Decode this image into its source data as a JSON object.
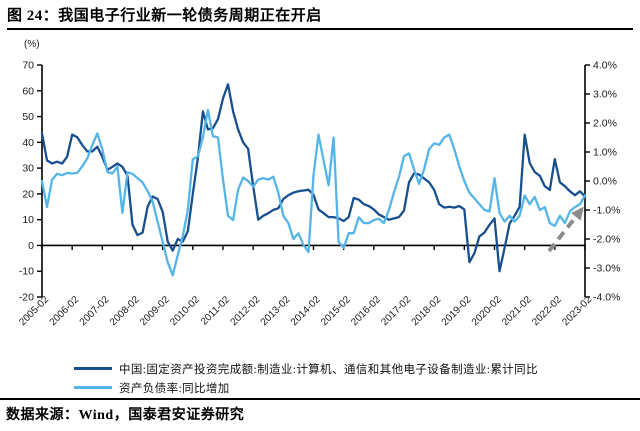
{
  "title": "图 24：我国电子行业新一轮债务周期正在开启",
  "source_note": "数据来源：Wind，国泰君安证券研究",
  "colors": {
    "dark_line": "#184F8F",
    "light_line": "#55B5E8",
    "arrow": "#8C8C8C",
    "axis": "#1a1a1a"
  },
  "chart_data": {
    "type": "line",
    "title": "图 24：我国电子行业新一轮债务周期正在开启",
    "left_axis": {
      "unit_label": "(%)",
      "min": -20,
      "max": 70,
      "ticks": [
        70,
        60,
        50,
        40,
        30,
        20,
        10,
        0,
        -10,
        -20
      ]
    },
    "right_axis": {
      "min": -4,
      "max": 4,
      "ticks": [
        4,
        3,
        2,
        1,
        0,
        -1,
        -2,
        -3,
        -4
      ],
      "tick_labels": [
        "4.0%",
        "3.0%",
        "2.0%",
        "1.0%",
        "0.0%",
        "-1.0%",
        "-2.0%",
        "-3.0%",
        "-4.0%"
      ]
    },
    "x_tick_labels": [
      "2005-02",
      "2006-02",
      "2007-02",
      "2008-02",
      "2009-02",
      "2010-02",
      "2011-02",
      "2012-02",
      "2013-02",
      "2014-02",
      "2015-02",
      "2016-02",
      "2017-02",
      "2018-02",
      "2019-02",
      "2020-02",
      "2021-02",
      "2022-02",
      "2023-02"
    ],
    "x_start": "2005-02",
    "x_end": "2023-02",
    "sample_step_months": 2,
    "grid": false,
    "legend_position": "bottom",
    "series": [
      {
        "name": "中国:固定资产投资完成额:制造业:计算机、通信和其他电子设备制造业:累计同比",
        "axis": "left",
        "color": "#184F8F",
        "values": [
          43.5,
          33,
          31.8,
          32.5,
          31.8,
          34.4,
          43,
          42,
          39,
          36.5,
          36.5,
          38.3,
          34.4,
          29.3,
          30.5,
          31.8,
          30.5,
          27,
          8,
          4,
          5,
          15,
          19,
          18,
          13,
          1.5,
          -2,
          2.5,
          1.5,
          5.5,
          20,
          34,
          52,
          45,
          45.5,
          49,
          57,
          62.5,
          52,
          45,
          40,
          37.5,
          23,
          10,
          11.5,
          12.5,
          13.8,
          14.4,
          18,
          19.5,
          20.5,
          21,
          21.3,
          21.6,
          19.7,
          14,
          12.5,
          11,
          11,
          10.5,
          9.5,
          11,
          18.4,
          17.8,
          16,
          15.3,
          14,
          12,
          11,
          10,
          10.5,
          11,
          13.5,
          24.5,
          28,
          27.5,
          26,
          24.5,
          21.5,
          16,
          14.7,
          15,
          14.7,
          15.3,
          14,
          -6.5,
          -3,
          3.5,
          5,
          8,
          10.5,
          -10,
          -1,
          8.5,
          11.5,
          15,
          43,
          32,
          28.5,
          27,
          23,
          21.5,
          33.5,
          24.5,
          23,
          21,
          19.5,
          21,
          19
        ]
      },
      {
        "name": "资产负债率:同比增加",
        "axis": "right",
        "color": "#55B5E8",
        "values": [
          0.0,
          -0.9,
          0.05,
          0.25,
          0.2,
          0.28,
          0.26,
          0.28,
          0.5,
          0.78,
          1.24,
          1.64,
          1.1,
          0.31,
          0.26,
          0.5,
          -1.1,
          0.3,
          0.25,
          0.1,
          -0.05,
          -0.35,
          -0.7,
          -1.4,
          -2.1,
          -2.8,
          -3.25,
          -2.55,
          -1.9,
          -1.0,
          0.75,
          0.85,
          1.5,
          2.45,
          1.55,
          1.5,
          0.05,
          -1.2,
          -1.35,
          -0.3,
          0.12,
          0.0,
          -0.2,
          0.05,
          0.1,
          0.05,
          0.15,
          -0.4,
          -1.2,
          -1.45,
          -2.0,
          -1.8,
          -2.2,
          -2.45,
          0.2,
          1.6,
          0.7,
          -0.15,
          1.5,
          -2.1,
          -2.3,
          -1.8,
          -1.8,
          -1.25,
          -1.45,
          -1.45,
          -1.35,
          -1.3,
          -1.45,
          -1.0,
          -0.4,
          0.15,
          0.85,
          0.95,
          0.4,
          -0.1,
          0.4,
          1.1,
          1.3,
          1.25,
          1.5,
          1.6,
          1.1,
          0.5,
          0.0,
          -0.4,
          -0.6,
          -0.8,
          -1.0,
          -1.05,
          0.1,
          -1.1,
          -1.4,
          -1.2,
          -1.4,
          -1.2,
          -0.5,
          -0.8,
          -0.55,
          -1.0,
          -0.9,
          -1.45,
          -1.55,
          -1.2,
          -1.45,
          -1.05,
          -0.9,
          -0.8,
          -0.5
        ]
      }
    ],
    "annotations": [
      {
        "shape": "dashed-arrow",
        "color": "#8C8C8C",
        "direction": "up-right",
        "position": "near 2022 to 2023-02, pointing upward past the right axis"
      }
    ]
  }
}
